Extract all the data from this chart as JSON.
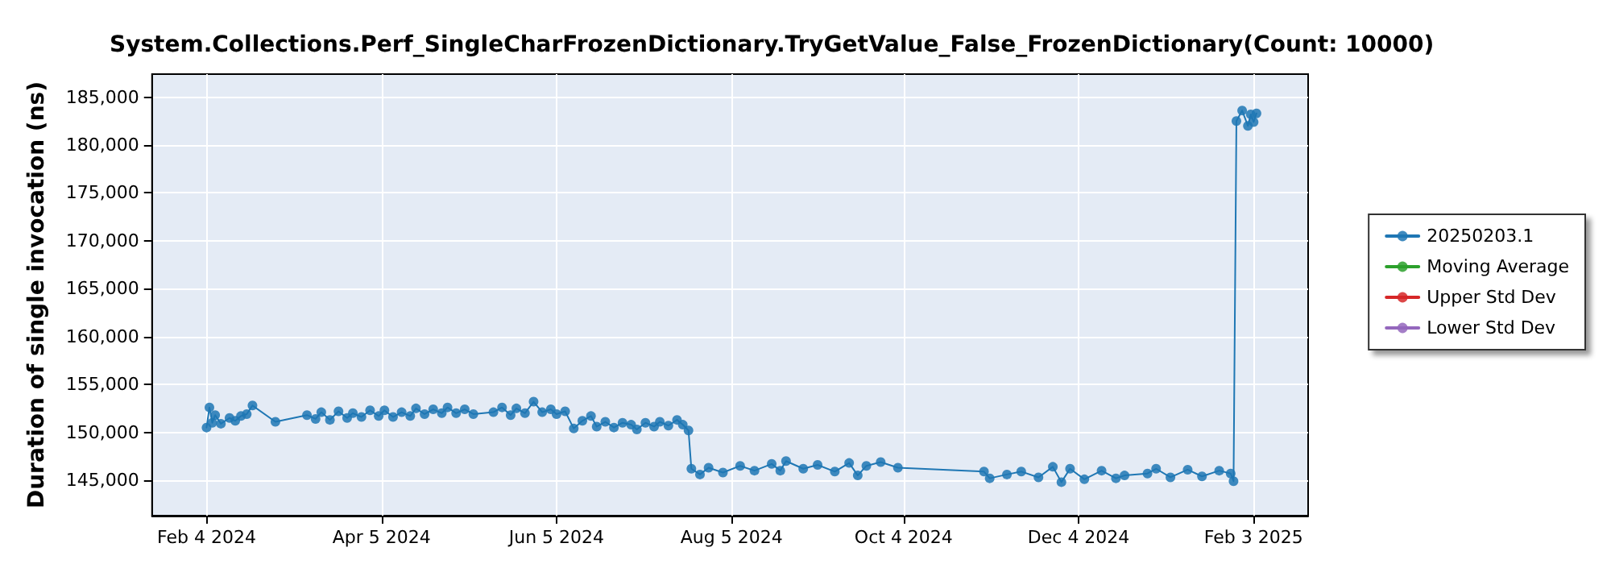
{
  "chart_data": {
    "type": "line",
    "title": "System.Collections.Perf_SingleCharFrozenDictionary.TryGetValue_False_FrozenDictionary(Count: 10000)",
    "ylabel": "Duration of single invocation (ns)",
    "xlim": [
      "2024-01-16",
      "2025-02-22"
    ],
    "ylim": [
      141300,
      187400
    ],
    "xticks": [
      {
        "value": "2024-02-04",
        "label": "Feb 4 2024"
      },
      {
        "value": "2024-04-05",
        "label": "Apr 5 2024"
      },
      {
        "value": "2024-06-05",
        "label": "Jun 5 2024"
      },
      {
        "value": "2024-08-05",
        "label": "Aug 5 2024"
      },
      {
        "value": "2024-10-04",
        "label": "Oct 4 2024"
      },
      {
        "value": "2024-12-04",
        "label": "Dec 4 2024"
      },
      {
        "value": "2025-02-03",
        "label": "Feb 3 2025"
      }
    ],
    "yticks": [
      {
        "value": 145000,
        "label": "145,000"
      },
      {
        "value": 150000,
        "label": "150,000"
      },
      {
        "value": 155000,
        "label": "155,000"
      },
      {
        "value": 160000,
        "label": "160,000"
      },
      {
        "value": 165000,
        "label": "165,000"
      },
      {
        "value": 170000,
        "label": "170,000"
      },
      {
        "value": 175000,
        "label": "175,000"
      },
      {
        "value": 180000,
        "label": "180,000"
      },
      {
        "value": 185000,
        "label": "185,000"
      }
    ],
    "grid": true,
    "legend": "right",
    "marker": "circle",
    "line_style": "solid",
    "series": [
      {
        "name": "20250203.1",
        "color": "#1f77b4",
        "x": [
          "2024-02-04",
          "2024-02-05",
          "2024-02-06",
          "2024-02-07",
          "2024-02-09",
          "2024-02-12",
          "2024-02-14",
          "2024-02-16",
          "2024-02-18",
          "2024-02-20",
          "2024-02-28",
          "2024-03-10",
          "2024-03-13",
          "2024-03-15",
          "2024-03-18",
          "2024-03-21",
          "2024-03-24",
          "2024-03-26",
          "2024-03-29",
          "2024-04-01",
          "2024-04-04",
          "2024-04-06",
          "2024-04-09",
          "2024-04-12",
          "2024-04-15",
          "2024-04-17",
          "2024-04-20",
          "2024-04-23",
          "2024-04-26",
          "2024-04-28",
          "2024-05-01",
          "2024-05-04",
          "2024-05-07",
          "2024-05-14",
          "2024-05-17",
          "2024-05-20",
          "2024-05-22",
          "2024-05-25",
          "2024-05-28",
          "2024-05-31",
          "2024-06-03",
          "2024-06-05",
          "2024-06-08",
          "2024-06-11",
          "2024-06-14",
          "2024-06-17",
          "2024-06-19",
          "2024-06-22",
          "2024-06-25",
          "2024-06-28",
          "2024-07-01",
          "2024-07-03",
          "2024-07-06",
          "2024-07-09",
          "2024-07-11",
          "2024-07-14",
          "2024-07-17",
          "2024-07-19",
          "2024-07-21",
          "2024-07-22",
          "2024-07-25",
          "2024-07-28",
          "2024-08-02",
          "2024-08-08",
          "2024-08-13",
          "2024-08-19",
          "2024-08-22",
          "2024-08-24",
          "2024-08-30",
          "2024-09-04",
          "2024-09-10",
          "2024-09-15",
          "2024-09-18",
          "2024-09-21",
          "2024-09-26",
          "2024-10-02",
          "2024-11-01",
          "2024-11-03",
          "2024-11-09",
          "2024-11-14",
          "2024-11-20",
          "2024-11-25",
          "2024-11-28",
          "2024-12-01",
          "2024-12-06",
          "2024-12-12",
          "2024-12-17",
          "2024-12-20",
          "2024-12-28",
          "2024-12-31",
          "2025-01-05",
          "2025-01-11",
          "2025-01-16",
          "2025-01-22",
          "2025-01-26",
          "2025-01-27",
          "2025-01-28",
          "2025-01-30",
          "2025-02-01",
          "2025-02-02",
          "2025-02-03",
          "2025-02-04"
        ],
        "values": [
          150500,
          152600,
          151000,
          151800,
          150900,
          151500,
          151200,
          151700,
          151900,
          152800,
          151100,
          151800,
          151400,
          152100,
          151300,
          152200,
          151500,
          152000,
          151600,
          152300,
          151700,
          152300,
          151600,
          152100,
          151700,
          152500,
          151900,
          152400,
          152000,
          152600,
          152000,
          152400,
          151900,
          152100,
          152600,
          151800,
          152500,
          152000,
          153200,
          152100,
          152400,
          151900,
          152200,
          150400,
          151200,
          151700,
          150600,
          151100,
          150500,
          151000,
          150800,
          150300,
          151000,
          150600,
          151100,
          150700,
          151300,
          150800,
          150200,
          146200,
          145600,
          146300,
          145800,
          146500,
          146000,
          146700,
          146000,
          147000,
          146200,
          146600,
          145900,
          146800,
          145500,
          146500,
          146900,
          146300,
          145900,
          145200,
          145600,
          145900,
          145300,
          146400,
          144800,
          146200,
          145100,
          146000,
          145200,
          145500,
          145700,
          146200,
          145300,
          146100,
          145400,
          146000,
          145700,
          144900,
          182500,
          183600,
          182000,
          183200,
          182400,
          183300
        ]
      },
      {
        "name": "Moving Average",
        "color": "#2ca02c"
      },
      {
        "name": "Upper Std Dev",
        "color": "#d62728"
      },
      {
        "name": "Lower Std Dev",
        "color": "#9467bd"
      }
    ]
  }
}
